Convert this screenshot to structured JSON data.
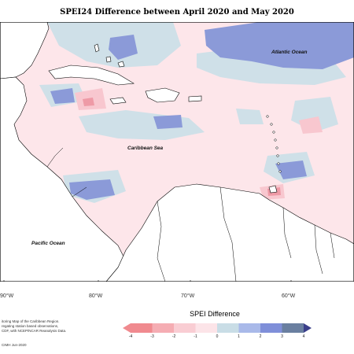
{
  "title": "SPEI24 Difference between April 2020 and May 2020",
  "map_labels": {
    "atlantic": "Atlantic Ocean",
    "caribbean": "Caribbean Sea",
    "pacific": "Pacific Ocean"
  },
  "longitude_labels": [
    "90°W",
    "80°W",
    "70°W",
    "60°W"
  ],
  "notes": {
    "line1": "itoring Map of the Caribbean Region.",
    "line2": "regating station based observations,",
    "line3": "CDF, with NCEP/NCAR Reanalysis Data.",
    "credit": "CIMH Jun-2020"
  },
  "legend": {
    "title": "SPEI Difference",
    "ticks": [
      "-4",
      "-3",
      "-2",
      "-1",
      "0",
      "1",
      "2",
      "3",
      "4"
    ],
    "colors": [
      "#f08a8f",
      "#f5adb3",
      "#f9cdd3",
      "#fce4e8",
      "#c9dde6",
      "#a9b9e9",
      "#7f8fd9",
      "#6a7fa0",
      "#3b3f8a"
    ]
  },
  "colors": {
    "land": "#ffffff",
    "coast": "#000000",
    "light_pink": "#fde6ea",
    "light_blue": "#cfe0e8",
    "mid_blue": "#8b9ad8",
    "pink": "#f8c7cf",
    "red_pink": "#ee9aa6"
  }
}
